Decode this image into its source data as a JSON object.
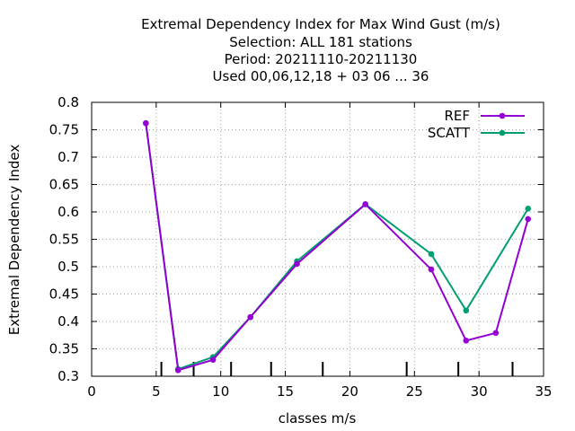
{
  "chart_data": {
    "type": "line",
    "title_lines": [
      "Extremal Dependency Index  for Max Wind Gust (m/s)",
      "Selection: ALL    181 stations",
      "Period: 20211110-20211130",
      "Used  00,06,12,18 + 03 06 ... 36"
    ],
    "xlabel": "classes m/s",
    "ylabel": "Extremal Dependency Index",
    "xlim": [
      0,
      35
    ],
    "ylim": [
      0.3,
      0.8
    ],
    "xticks": [
      0,
      5,
      10,
      15,
      20,
      25,
      30,
      35
    ],
    "yticks": [
      0.3,
      0.35,
      0.4,
      0.45,
      0.5,
      0.55,
      0.6,
      0.65,
      0.7,
      0.75,
      0.8
    ],
    "grid": true,
    "legend_position": "top-right",
    "class_boundaries": [
      5.4,
      7.9,
      10.8,
      13.9,
      17.9,
      24.4,
      28.4,
      32.6
    ],
    "series": [
      {
        "name": "REF",
        "color": "#9400d3",
        "x": [
          4.2,
          6.7,
          9.4,
          12.3,
          15.9,
          21.2,
          26.3,
          29.0,
          31.3,
          33.8
        ],
        "y": [
          0.762,
          0.311,
          0.33,
          0.408,
          0.505,
          0.614,
          0.495,
          0.365,
          0.379,
          0.587
        ]
      },
      {
        "name": "SCATT",
        "color": "#009e73",
        "x": [
          4.2,
          6.7,
          9.4,
          12.3,
          15.9,
          21.2,
          26.3,
          29.0,
          31.3,
          33.8
        ],
        "y": [
          0.762,
          0.313,
          0.335,
          0.408,
          0.51,
          0.614,
          0.523,
          0.42,
          null,
          0.606
        ]
      }
    ]
  }
}
